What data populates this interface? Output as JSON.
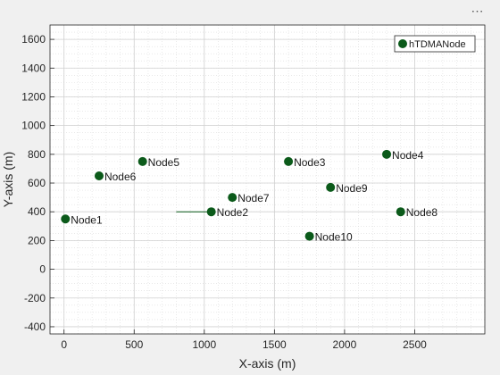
{
  "toolbar": {
    "menu_icon": "ellipsis-icon"
  },
  "colors": {
    "marker": "#0b5a1a",
    "background": "#f0f0f0",
    "axes": "#ffffff",
    "grid": "#dcdcdc"
  },
  "chart_data": {
    "type": "scatter",
    "title": "",
    "xlabel": "X-axis (m)",
    "ylabel": "Y-axis (m)",
    "xlim": [
      -100,
      3000
    ],
    "ylim": [
      -450,
      1700
    ],
    "xticks": [
      0,
      500,
      1000,
      1500,
      2000,
      2500
    ],
    "yticks": [
      -400,
      -200,
      0,
      200,
      400,
      600,
      800,
      1000,
      1200,
      1400,
      1600
    ],
    "grid": true,
    "minor_grid": true,
    "legend": {
      "position": "top-right",
      "entries": [
        "hTDMANode"
      ]
    },
    "series": [
      {
        "name": "hTDMANode",
        "points": [
          {
            "label": "Node1",
            "x": 10,
            "y": 350
          },
          {
            "label": "Node2",
            "x": 1050,
            "y": 400
          },
          {
            "label": "Node3",
            "x": 1600,
            "y": 750
          },
          {
            "label": "Node4",
            "x": 2300,
            "y": 800
          },
          {
            "label": "Node5",
            "x": 560,
            "y": 750
          },
          {
            "label": "Node6",
            "x": 250,
            "y": 650
          },
          {
            "label": "Node7",
            "x": 1200,
            "y": 500
          },
          {
            "label": "Node8",
            "x": 2400,
            "y": 400
          },
          {
            "label": "Node9",
            "x": 1900,
            "y": 570
          },
          {
            "label": "Node10",
            "x": 1750,
            "y": 230
          }
        ]
      }
    ],
    "annotations": [
      {
        "type": "line",
        "x": [
          800,
          1050
        ],
        "y": [
          400,
          400
        ]
      }
    ]
  }
}
